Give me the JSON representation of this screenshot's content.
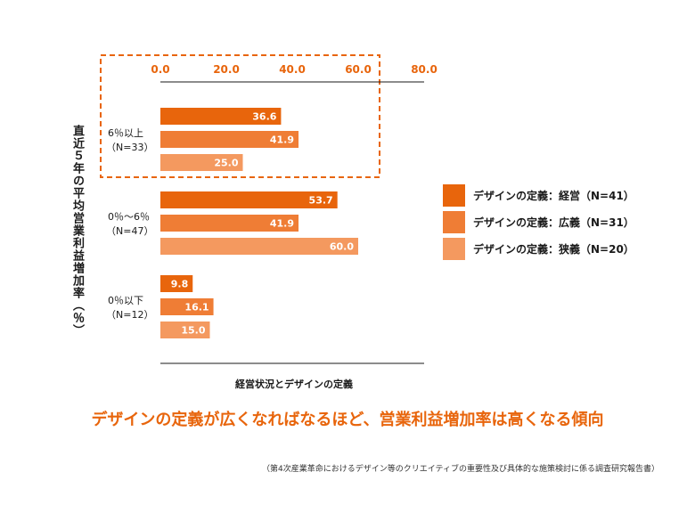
{
  "chart_data": {
    "type": "bar",
    "orientation": "horizontal",
    "xlabel": "経営状況とデザインの定義",
    "ylabel": "直近５年の平均営業利益増加率（％）",
    "xlim": [
      0,
      80
    ],
    "xticks": [
      "0.0",
      "20.0",
      "40.0",
      "60.0",
      "80.0"
    ],
    "categories": [
      {
        "label_line1": "6％以上",
        "label_line2": "（N=33）"
      },
      {
        "label_line1": "0％〜6％",
        "label_line2": "（N=47）"
      },
      {
        "label_line1": "0％以下",
        "label_line2": "（N=12）"
      }
    ],
    "series": [
      {
        "name": "デザインの定義：経営（N=41）",
        "color": "#e8650c",
        "values": [
          36.6,
          53.7,
          9.8
        ]
      },
      {
        "name": "デザインの定義：広義（N=31）",
        "color": "#ef7d35",
        "values": [
          41.9,
          41.9,
          16.1
        ]
      },
      {
        "name": "デザインの定義：狭義（N=20）",
        "color": "#f4995f",
        "values": [
          25.0,
          60.0,
          15.0
        ]
      }
    ],
    "legend_position": "right",
    "grid": false,
    "highlight_category_index": 0,
    "highlight_color": "#e8650c"
  },
  "headline": "デザインの定義が広くなればなるほど、営業利益増加率は高くなる傾向",
  "source": "（第4次産業革命におけるデザイン等のクリエイティブの重要性及び具体的な施策検討に係る調査研究報告書）"
}
